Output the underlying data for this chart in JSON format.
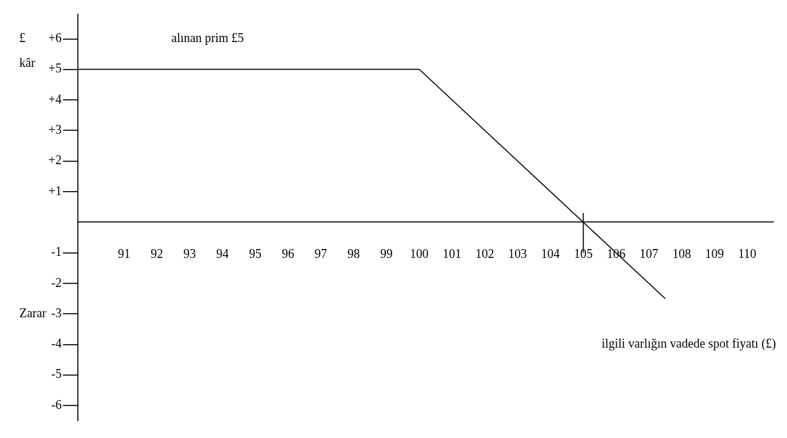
{
  "chart_data": {
    "type": "line",
    "xlabel": "ilgili varlığın vadede spot fiyatı (£)",
    "ylabel": "£ kâr",
    "annotations": [
      "alınan prim £5",
      "Zarar"
    ],
    "x": [
      89.6,
      100,
      107.5
    ],
    "series": [
      {
        "color": "#000000",
        "values": [
          5,
          5,
          -2.5
        ]
      }
    ],
    "xlim": [
      89.6,
      110.8
    ],
    "xticks": [
      91,
      92,
      93,
      94,
      95,
      96,
      97,
      98,
      99,
      100,
      101,
      102,
      103,
      104,
      105,
      106,
      107,
      108,
      109,
      110
    ],
    "ylim": [
      -6.5,
      6.8
    ],
    "yticks": [
      {
        "value": 6,
        "label": "+6"
      },
      {
        "value": 5,
        "label": "+5"
      },
      {
        "value": 4,
        "label": "+4"
      },
      {
        "value": 3,
        "label": "+3"
      },
      {
        "value": 2,
        "label": "+2"
      },
      {
        "value": 1,
        "label": "+1"
      },
      {
        "value": -1,
        "label": "-1"
      },
      {
        "value": -2,
        "label": "-2"
      },
      {
        "value": -3,
        "label": "-3"
      },
      {
        "value": -4,
        "label": "-4"
      },
      {
        "value": -5,
        "label": "-5"
      },
      {
        "value": -6,
        "label": "-6"
      }
    ],
    "grid": false,
    "legend": false,
    "ref_lines": [
      {
        "axis": "x",
        "value": 105
      }
    ]
  }
}
